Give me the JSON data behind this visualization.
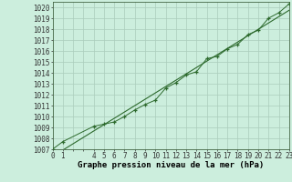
{
  "x": [
    0,
    1,
    4,
    5,
    6,
    7,
    8,
    9,
    10,
    11,
    12,
    13,
    14,
    15,
    16,
    17,
    18,
    19,
    20,
    21,
    22,
    23
  ],
  "y": [
    1007.0,
    1007.7,
    1009.1,
    1009.3,
    1009.5,
    1010.0,
    1010.6,
    1011.1,
    1011.5,
    1012.6,
    1013.1,
    1013.8,
    1014.1,
    1015.3,
    1015.5,
    1016.2,
    1016.6,
    1017.5,
    1017.9,
    1019.0,
    1019.5,
    1020.3
  ],
  "line_color": "#2d6a2d",
  "marker_color": "#2d6a2d",
  "bg_color": "#cceedd",
  "grid_color": "#aaccbb",
  "ylabel_values": [
    1007,
    1008,
    1009,
    1010,
    1011,
    1012,
    1013,
    1014,
    1015,
    1016,
    1017,
    1018,
    1019,
    1020
  ],
  "xlabel": "Graphe pression niveau de la mer (hPa)",
  "xtick_labels": [
    "0",
    "1",
    "",
    "",
    "4",
    "5",
    "6",
    "7",
    "8",
    "9",
    "10",
    "11",
    "12",
    "13",
    "14",
    "15",
    "16",
    "17",
    "18",
    "19",
    "20",
    "21",
    "22",
    "23"
  ],
  "xlim": [
    0,
    23
  ],
  "ylim": [
    1007.0,
    1020.5
  ],
  "tick_fontsize": 5.5,
  "xlabel_fontsize": 6.5
}
